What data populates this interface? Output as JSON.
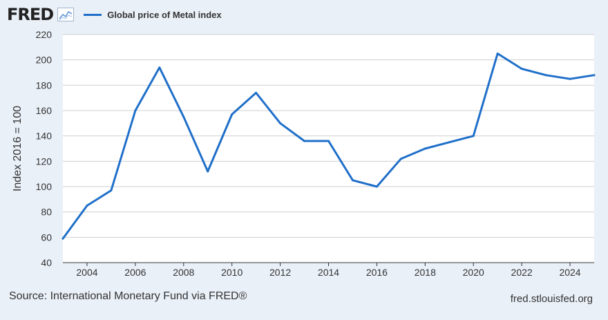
{
  "header": {
    "logo": "FRED",
    "logo_icon": "line-chart-icon",
    "legend_label": "Global price of Metal index"
  },
  "colors": {
    "series": "#1f6fc9",
    "plot_background": "#ffffff",
    "page_background": "#eaf0f8",
    "grid": "#cfcfcf"
  },
  "chart_data": {
    "type": "line",
    "title": "",
    "xlabel": "",
    "ylabel": "Index 2016 = 100",
    "xlim": [
      2003,
      2025
    ],
    "ylim": [
      40,
      220
    ],
    "y_ticks": [
      40,
      60,
      80,
      100,
      120,
      140,
      160,
      180,
      200,
      220
    ],
    "x_ticks": [
      2004,
      2006,
      2008,
      2010,
      2012,
      2014,
      2016,
      2018,
      2020,
      2022,
      2024
    ],
    "grid": true,
    "legend_position": "top-left",
    "series": [
      {
        "name": "Global price of Metal index",
        "x": [
          2003,
          2004,
          2005,
          2006,
          2007,
          2008,
          2009,
          2010,
          2011,
          2012,
          2013,
          2014,
          2015,
          2016,
          2017,
          2018,
          2019,
          2020,
          2021,
          2022,
          2023,
          2024,
          2025
        ],
        "values": [
          59,
          85,
          97,
          160,
          194,
          155,
          112,
          157,
          174,
          150,
          136,
          136,
          105,
          100,
          122,
          130,
          135,
          140,
          205,
          193,
          188,
          185,
          188
        ]
      }
    ]
  },
  "footer": {
    "source": "Source: International Monetary Fund via FRED®",
    "site": "fred.stlouisfed.org"
  }
}
